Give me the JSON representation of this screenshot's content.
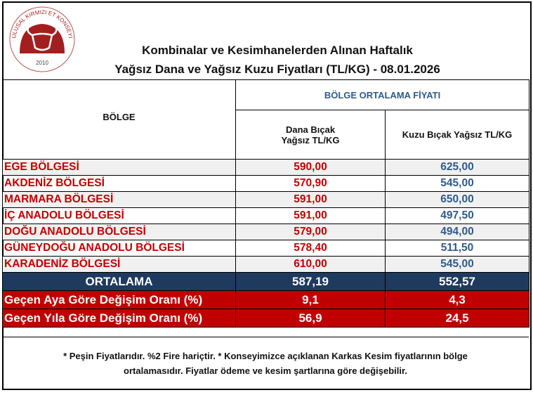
{
  "logo": {
    "text_arc": "ULUSAL KIRMIZI ET KONSEYİ",
    "year": "2010",
    "color": "#a31f1f"
  },
  "title": {
    "line1": "Kombinalar ve Kesimhanelerden Alınan Haftalık",
    "line2": "Yağsız Dana ve Yağsız Kuzu Fiyatları (TL/KG) - 08.01.2026"
  },
  "table": {
    "region_header": "BÖLGE",
    "group_header": "BÖLGE ORTALAMA FİYATI",
    "col1_header_line1": "Dana Bıçak",
    "col1_header_line2": "Yağsız TL/KG",
    "col2_header": "Kuzu Bıçak Yağsız TL/KG",
    "rows": [
      {
        "region": "EGE BÖLGESİ",
        "dana": "590,00",
        "kuzu": "625,00"
      },
      {
        "region": "AKDENİZ BÖLGESİ",
        "dana": "570,90",
        "kuzu": "545,00"
      },
      {
        "region": "MARMARA BÖLGESİ",
        "dana": "591,00",
        "kuzu": "650,00"
      },
      {
        "region": "İÇ ANADOLU BÖLGESİ",
        "dana": "591,00",
        "kuzu": "497,50"
      },
      {
        "region": "DOĞU ANADOLU BÖLGESİ",
        "dana": "579,00",
        "kuzu": "494,00"
      },
      {
        "region": "GÜNEYDOĞU ANADOLU BÖLGESİ",
        "dana": "578,40",
        "kuzu": "511,50"
      },
      {
        "region": "KARADENİZ BÖLGESİ",
        "dana": "610,00",
        "kuzu": "545,00"
      }
    ],
    "average": {
      "label": "ORTALAMA",
      "dana": "587,19",
      "kuzu": "552,57"
    },
    "monthly_change": {
      "label": "Geçen Aya Göre Değişim Oranı (%)",
      "dana": "9,1",
      "kuzu": "4,3"
    },
    "yearly_change": {
      "label": "Geçen Yıla Göre Değişim Oranı (%)",
      "dana": "56,9",
      "kuzu": "24,5"
    }
  },
  "footer": {
    "line1": "* Peşin Fiyatlarıdır.  %2 Fire hariçtir. * Konseyimizce açıklanan Karkas Kesim fiyatlarının bölge",
    "line2": "ortalamasıdır. Fiyatlar  ödeme  ve kesim şartlarına göre değişebilir."
  },
  "colors": {
    "region_red": "#c00000",
    "kuzu_blue": "#2e5a8c",
    "average_navy": "#1f3a5f",
    "change_red": "#c00000"
  }
}
